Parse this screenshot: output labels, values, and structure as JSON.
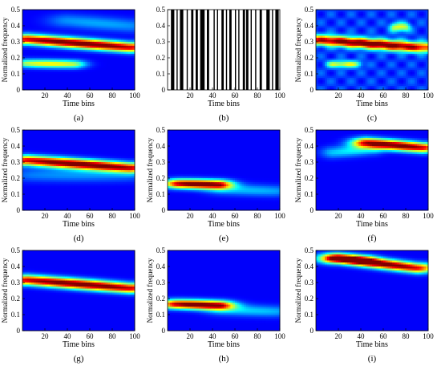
{
  "figure": {
    "panels": [
      {
        "id": "a",
        "caption": "(a)",
        "kind": "tfd",
        "ridges": [
          {
            "x0": 5,
            "y0": 0.315,
            "x1": 95,
            "y1": 0.265,
            "amp": 1.0,
            "sx": 36,
            "sy": 0.022
          },
          {
            "x0": 5,
            "y0": 0.165,
            "x1": 45,
            "y1": 0.16,
            "amp": 0.55,
            "sx": 16,
            "sy": 0.018
          },
          {
            "x0": 40,
            "y0": 0.43,
            "x1": 95,
            "y1": 0.4,
            "amp": 0.18,
            "sx": 25,
            "sy": 0.03
          }
        ]
      },
      {
        "id": "b",
        "caption": "(b)",
        "kind": "mask",
        "stripes": [
          [
            3,
            6
          ],
          [
            8,
            9
          ],
          [
            11,
            14
          ],
          [
            17,
            18
          ],
          [
            21,
            23
          ],
          [
            25,
            27
          ],
          [
            29,
            33
          ],
          [
            35,
            37
          ],
          [
            41,
            42
          ],
          [
            44,
            45
          ],
          [
            48,
            50
          ],
          [
            52,
            53
          ],
          [
            55,
            57
          ],
          [
            60,
            61
          ],
          [
            63,
            64
          ],
          [
            67,
            69
          ],
          [
            70,
            72
          ],
          [
            74,
            75
          ],
          [
            78,
            79
          ],
          [
            82,
            84
          ],
          [
            88,
            91
          ],
          [
            93,
            94
          ],
          [
            96,
            99
          ]
        ]
      },
      {
        "id": "c",
        "caption": "(c)",
        "kind": "tfd",
        "noise": true,
        "ridges": [
          {
            "x0": 5,
            "y0": 0.31,
            "x1": 90,
            "y1": 0.265,
            "amp": 0.95,
            "sx": 30,
            "sy": 0.022
          },
          {
            "x0": 15,
            "y0": 0.16,
            "x1": 35,
            "y1": 0.16,
            "amp": 0.45,
            "sx": 8,
            "sy": 0.015
          },
          {
            "x0": 70,
            "y0": 0.39,
            "x1": 80,
            "y1": 0.39,
            "amp": 0.45,
            "sx": 6,
            "sy": 0.02
          }
        ]
      },
      {
        "id": "d",
        "caption": "(d)",
        "kind": "tfd",
        "ridges": [
          {
            "x0": 5,
            "y0": 0.31,
            "x1": 95,
            "y1": 0.265,
            "amp": 1.0,
            "sx": 32,
            "sy": 0.022
          },
          {
            "x0": 10,
            "y0": 0.22,
            "x1": 90,
            "y1": 0.22,
            "amp": 0.16,
            "sx": 30,
            "sy": 0.03
          }
        ]
      },
      {
        "id": "e",
        "caption": "(e)",
        "kind": "tfd",
        "ridges": [
          {
            "x0": 10,
            "y0": 0.165,
            "x1": 45,
            "y1": 0.16,
            "amp": 1.0,
            "sx": 18,
            "sy": 0.02
          },
          {
            "x0": 50,
            "y0": 0.13,
            "x1": 95,
            "y1": 0.12,
            "amp": 0.2,
            "sx": 22,
            "sy": 0.025
          }
        ]
      },
      {
        "id": "f",
        "caption": "(f)",
        "kind": "tfd",
        "ridges": [
          {
            "x0": 45,
            "y0": 0.42,
            "x1": 95,
            "y1": 0.39,
            "amp": 1.0,
            "sx": 18,
            "sy": 0.022
          },
          {
            "x0": 15,
            "y0": 0.36,
            "x1": 50,
            "y1": 0.38,
            "amp": 0.25,
            "sx": 14,
            "sy": 0.025
          }
        ]
      },
      {
        "id": "g",
        "caption": "(g)",
        "kind": "tfd",
        "ridges": [
          {
            "x0": 5,
            "y0": 0.315,
            "x1": 95,
            "y1": 0.265,
            "amp": 1.0,
            "sx": 38,
            "sy": 0.022
          }
        ]
      },
      {
        "id": "h",
        "caption": "(h)",
        "kind": "tfd",
        "ridges": [
          {
            "x0": 8,
            "y0": 0.165,
            "x1": 45,
            "y1": 0.158,
            "amp": 1.0,
            "sx": 20,
            "sy": 0.02
          },
          {
            "x0": 50,
            "y0": 0.13,
            "x1": 95,
            "y1": 0.12,
            "amp": 0.22,
            "sx": 22,
            "sy": 0.025
          }
        ]
      },
      {
        "id": "i",
        "caption": "(i)",
        "kind": "tfd",
        "ridges": [
          {
            "x0": 20,
            "y0": 0.45,
            "x1": 90,
            "y1": 0.39,
            "amp": 1.0,
            "sx": 22,
            "sy": 0.022
          },
          {
            "x0": 15,
            "y0": 0.45,
            "x1": 45,
            "y1": 0.44,
            "amp": 0.35,
            "sx": 14,
            "sy": 0.02
          }
        ]
      }
    ],
    "ylabel": "Normalized frequency",
    "xlabel": "Time bins",
    "yticks": [
      "0",
      "0.1",
      "0.2",
      "0.3",
      "0.4",
      "0.5"
    ],
    "xticks": [
      "20",
      "40",
      "60",
      "80",
      "100"
    ],
    "xrange": [
      0,
      100
    ],
    "yrange": [
      0,
      0.5
    ]
  }
}
